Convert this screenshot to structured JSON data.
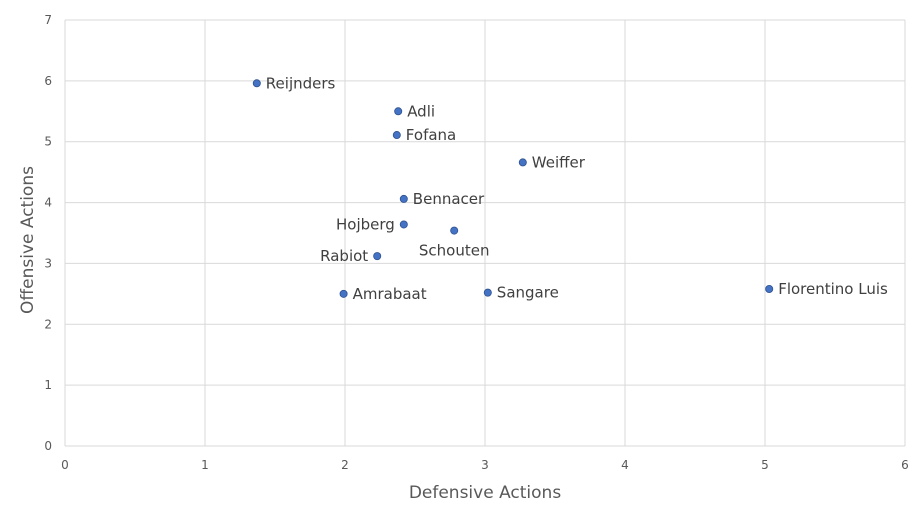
{
  "chart_data": {
    "type": "scatter",
    "xlabel": "Defensive Actions",
    "ylabel": "Offensive Actions",
    "xlim": [
      0,
      6
    ],
    "ylim": [
      0,
      7
    ],
    "xticks": [
      0,
      1,
      2,
      3,
      4,
      5,
      6
    ],
    "yticks": [
      0,
      1,
      2,
      3,
      4,
      5,
      6,
      7
    ],
    "grid": true,
    "marker_color": "#4472c4",
    "points": [
      {
        "label": "Reijnders",
        "x": 1.37,
        "y": 5.96,
        "pos": "right"
      },
      {
        "label": "Adli",
        "x": 2.38,
        "y": 5.5,
        "pos": "right"
      },
      {
        "label": "Fofana",
        "x": 2.37,
        "y": 5.11,
        "pos": "right"
      },
      {
        "label": "Weiffer",
        "x": 3.27,
        "y": 4.66,
        "pos": "right"
      },
      {
        "label": "Bennacer",
        "x": 2.42,
        "y": 4.06,
        "pos": "right"
      },
      {
        "label": "Hojberg",
        "x": 2.42,
        "y": 3.64,
        "pos": "left"
      },
      {
        "label": "Schouten",
        "x": 2.78,
        "y": 3.54,
        "pos": "below"
      },
      {
        "label": "Rabiot",
        "x": 2.23,
        "y": 3.12,
        "pos": "left"
      },
      {
        "label": "Amrabaat",
        "x": 1.99,
        "y": 2.5,
        "pos": "right"
      },
      {
        "label": "Sangare",
        "x": 3.02,
        "y": 2.52,
        "pos": "right"
      },
      {
        "label": "Florentino Luis",
        "x": 5.03,
        "y": 2.58,
        "pos": "right"
      }
    ]
  }
}
